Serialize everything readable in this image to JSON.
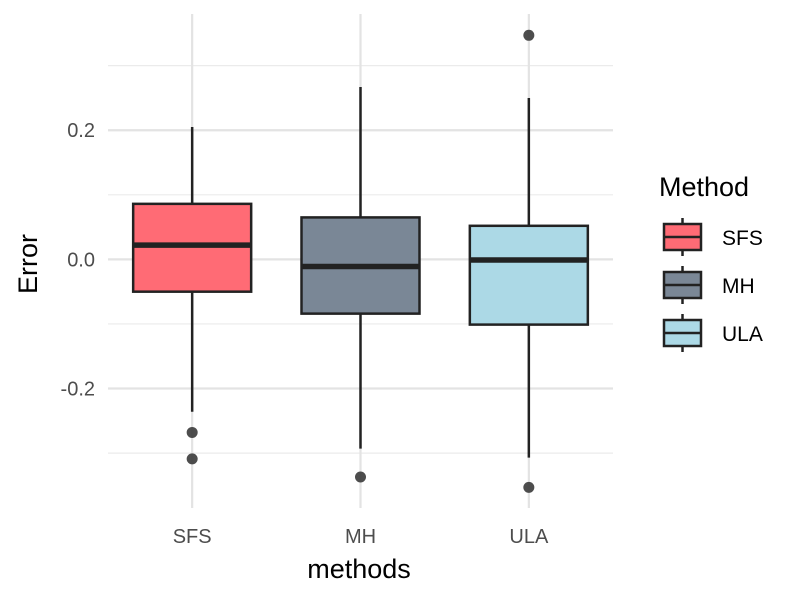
{
  "chart_data": {
    "type": "boxplot",
    "title": "",
    "xlabel": "methods",
    "ylabel": "Error",
    "categories": [
      "SFS",
      "MH",
      "ULA"
    ],
    "ylim": [
      -0.385,
      0.38
    ],
    "y_ticks": [
      -0.2,
      0.0,
      0.2
    ],
    "y_tick_labels": [
      "-0.2",
      "0.0",
      "0.2"
    ],
    "grid": true,
    "series": [
      {
        "name": "SFS",
        "color": "#ff6b75",
        "whisker_low": -0.236,
        "q1": -0.05,
        "median": 0.022,
        "q3": 0.086,
        "whisker_high": 0.205,
        "outliers": [
          -0.268,
          -0.309
        ]
      },
      {
        "name": "MH",
        "color": "#7a8796",
        "whisker_low": -0.293,
        "q1": -0.084,
        "median": -0.011,
        "q3": 0.065,
        "whisker_high": 0.267,
        "outliers": [
          -0.337
        ]
      },
      {
        "name": "ULA",
        "color": "#acd9e6",
        "whisker_low": -0.307,
        "q1": -0.101,
        "median": -0.001,
        "q3": 0.052,
        "whisker_high": 0.25,
        "outliers": [
          0.347,
          -0.353
        ]
      }
    ],
    "legend": {
      "title": "Method",
      "position": "right",
      "entries": [
        "SFS",
        "MH",
        "ULA"
      ]
    }
  }
}
